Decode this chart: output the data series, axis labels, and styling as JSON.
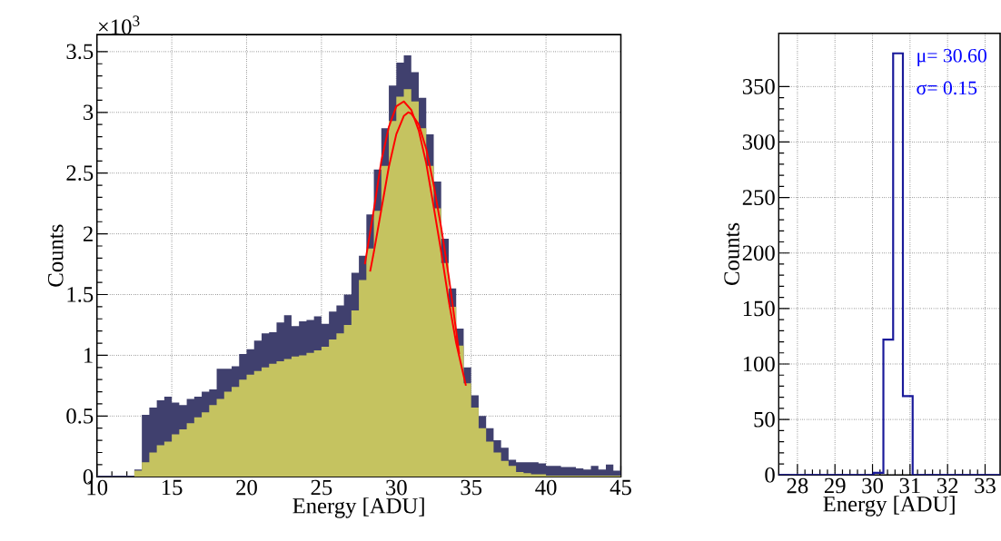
{
  "chart_data": [
    {
      "type": "histogram",
      "xlabel": "Energy [ADU]",
      "ylabel": "Counts",
      "annotations": [
        "×10$^{3}$"
      ],
      "grid": true,
      "xlim": [
        10,
        45
      ],
      "xticks": [
        10,
        15,
        20,
        25,
        30,
        35,
        40,
        45
      ],
      "ylim": [
        0,
        3.64
      ],
      "yticks": [
        0,
        0.5,
        1,
        1.5,
        2,
        2.5,
        3,
        3.5
      ],
      "bins": [
        10,
        10.5,
        11,
        11.5,
        12,
        12.5,
        13,
        13.5,
        14,
        14.5,
        15,
        15.5,
        16,
        16.5,
        17,
        17.5,
        18,
        18.5,
        19,
        19.5,
        20,
        20.5,
        21,
        21.5,
        22,
        22.5,
        23,
        23.5,
        24,
        24.5,
        25,
        25.5,
        26,
        26.5,
        27,
        27.5,
        28,
        28.5,
        29,
        29.5,
        30,
        30.5,
        31,
        31.5,
        32,
        32.5,
        33,
        33.5,
        34,
        34.5,
        35,
        35.5,
        36,
        36.5,
        37,
        37.5,
        38,
        38.5,
        39,
        39.5,
        40,
        40.5,
        41,
        41.5,
        42,
        42.5,
        43,
        43.5,
        44,
        44.5,
        45
      ],
      "series": [
        {
          "color": "#40406e",
          "values": [
            0.01,
            0.01,
            0.01,
            0.01,
            0.01,
            0.06,
            0.51,
            0.57,
            0.63,
            0.66,
            0.61,
            0.59,
            0.64,
            0.66,
            0.7,
            0.72,
            0.89,
            0.89,
            0.91,
            1.01,
            1.05,
            1.12,
            1.18,
            1.19,
            1.27,
            1.33,
            1.24,
            1.28,
            1.29,
            1.32,
            1.26,
            1.36,
            1.41,
            1.5,
            1.68,
            1.82,
            2.16,
            2.53,
            2.87,
            3.22,
            3.41,
            3.47,
            3.33,
            3.12,
            2.82,
            2.43,
            1.96,
            1.55,
            1.22,
            0.9,
            0.67,
            0.5,
            0.4,
            0.3,
            0.24,
            0.14,
            0.12,
            0.12,
            0.12,
            0.11,
            0.09,
            0.09,
            0.08,
            0.08,
            0.07,
            0.06,
            0.09,
            0.06,
            0.1,
            0.05
          ]
        },
        {
          "color": "#c5c360",
          "values": [
            0,
            0,
            0,
            0,
            0,
            0.05,
            0.12,
            0.2,
            0.26,
            0.29,
            0.35,
            0.39,
            0.44,
            0.49,
            0.53,
            0.59,
            0.64,
            0.7,
            0.74,
            0.8,
            0.84,
            0.87,
            0.9,
            0.93,
            0.95,
            0.97,
            0.99,
            1.0,
            1.02,
            1.04,
            1.07,
            1.13,
            1.18,
            1.25,
            1.37,
            1.62,
            1.88,
            2.19,
            2.56,
            2.93,
            3.13,
            3.19,
            3.09,
            2.87,
            2.56,
            2.21,
            1.76,
            1.4,
            1.08,
            0.77,
            0.57,
            0.4,
            0.29,
            0.2,
            0.13,
            0.09,
            0.04,
            0.03,
            0.02,
            0.02,
            0.01,
            0.01,
            0.01,
            0.01,
            0.01,
            0.01,
            0.01,
            0.01,
            0.01,
            0.01
          ]
        },
        {
          "type": "line",
          "color": "#ff0000",
          "x": [
            28.25,
            28.5,
            29,
            29.5,
            30,
            30.5,
            30.8,
            31,
            31.5,
            32,
            32.5,
            33,
            33.5,
            34,
            34.2
          ],
          "values": [
            1.69,
            1.85,
            2.2,
            2.55,
            2.82,
            2.97,
            3.0,
            2.99,
            2.9,
            2.7,
            2.4,
            2.05,
            1.65,
            1.2,
            1.01
          ]
        },
        {
          "type": "line",
          "color": "#ff0000",
          "x": [
            27.9,
            28.5,
            29,
            29.5,
            30,
            30.5,
            31,
            31.5,
            32,
            32.5,
            33,
            33.5,
            34,
            34.65
          ],
          "values": [
            1.75,
            2.2,
            2.6,
            2.88,
            3.05,
            3.09,
            3.02,
            2.85,
            2.58,
            2.22,
            1.85,
            1.45,
            1.1,
            0.75
          ]
        }
      ]
    },
    {
      "type": "histogram",
      "xlabel": "Energy [ADU]",
      "ylabel": "Counts",
      "annotations": [
        "μ= 30.60",
        "σ= 0.15"
      ],
      "grid": true,
      "xlim": [
        27.5,
        33.4
      ],
      "xticks": [
        28,
        29,
        30,
        31,
        32,
        33
      ],
      "ylim": [
        0,
        398
      ],
      "yticks": [
        0,
        50,
        100,
        150,
        200,
        250,
        300,
        350
      ],
      "bins": [
        27.5,
        30.03,
        30.29,
        30.55,
        30.81,
        31.07,
        33.4
      ],
      "series": [
        {
          "color": "#1a1a9a",
          "line_style": "solid",
          "values": [
            0,
            2,
            122,
            380,
            71,
            0
          ]
        }
      ]
    }
  ]
}
